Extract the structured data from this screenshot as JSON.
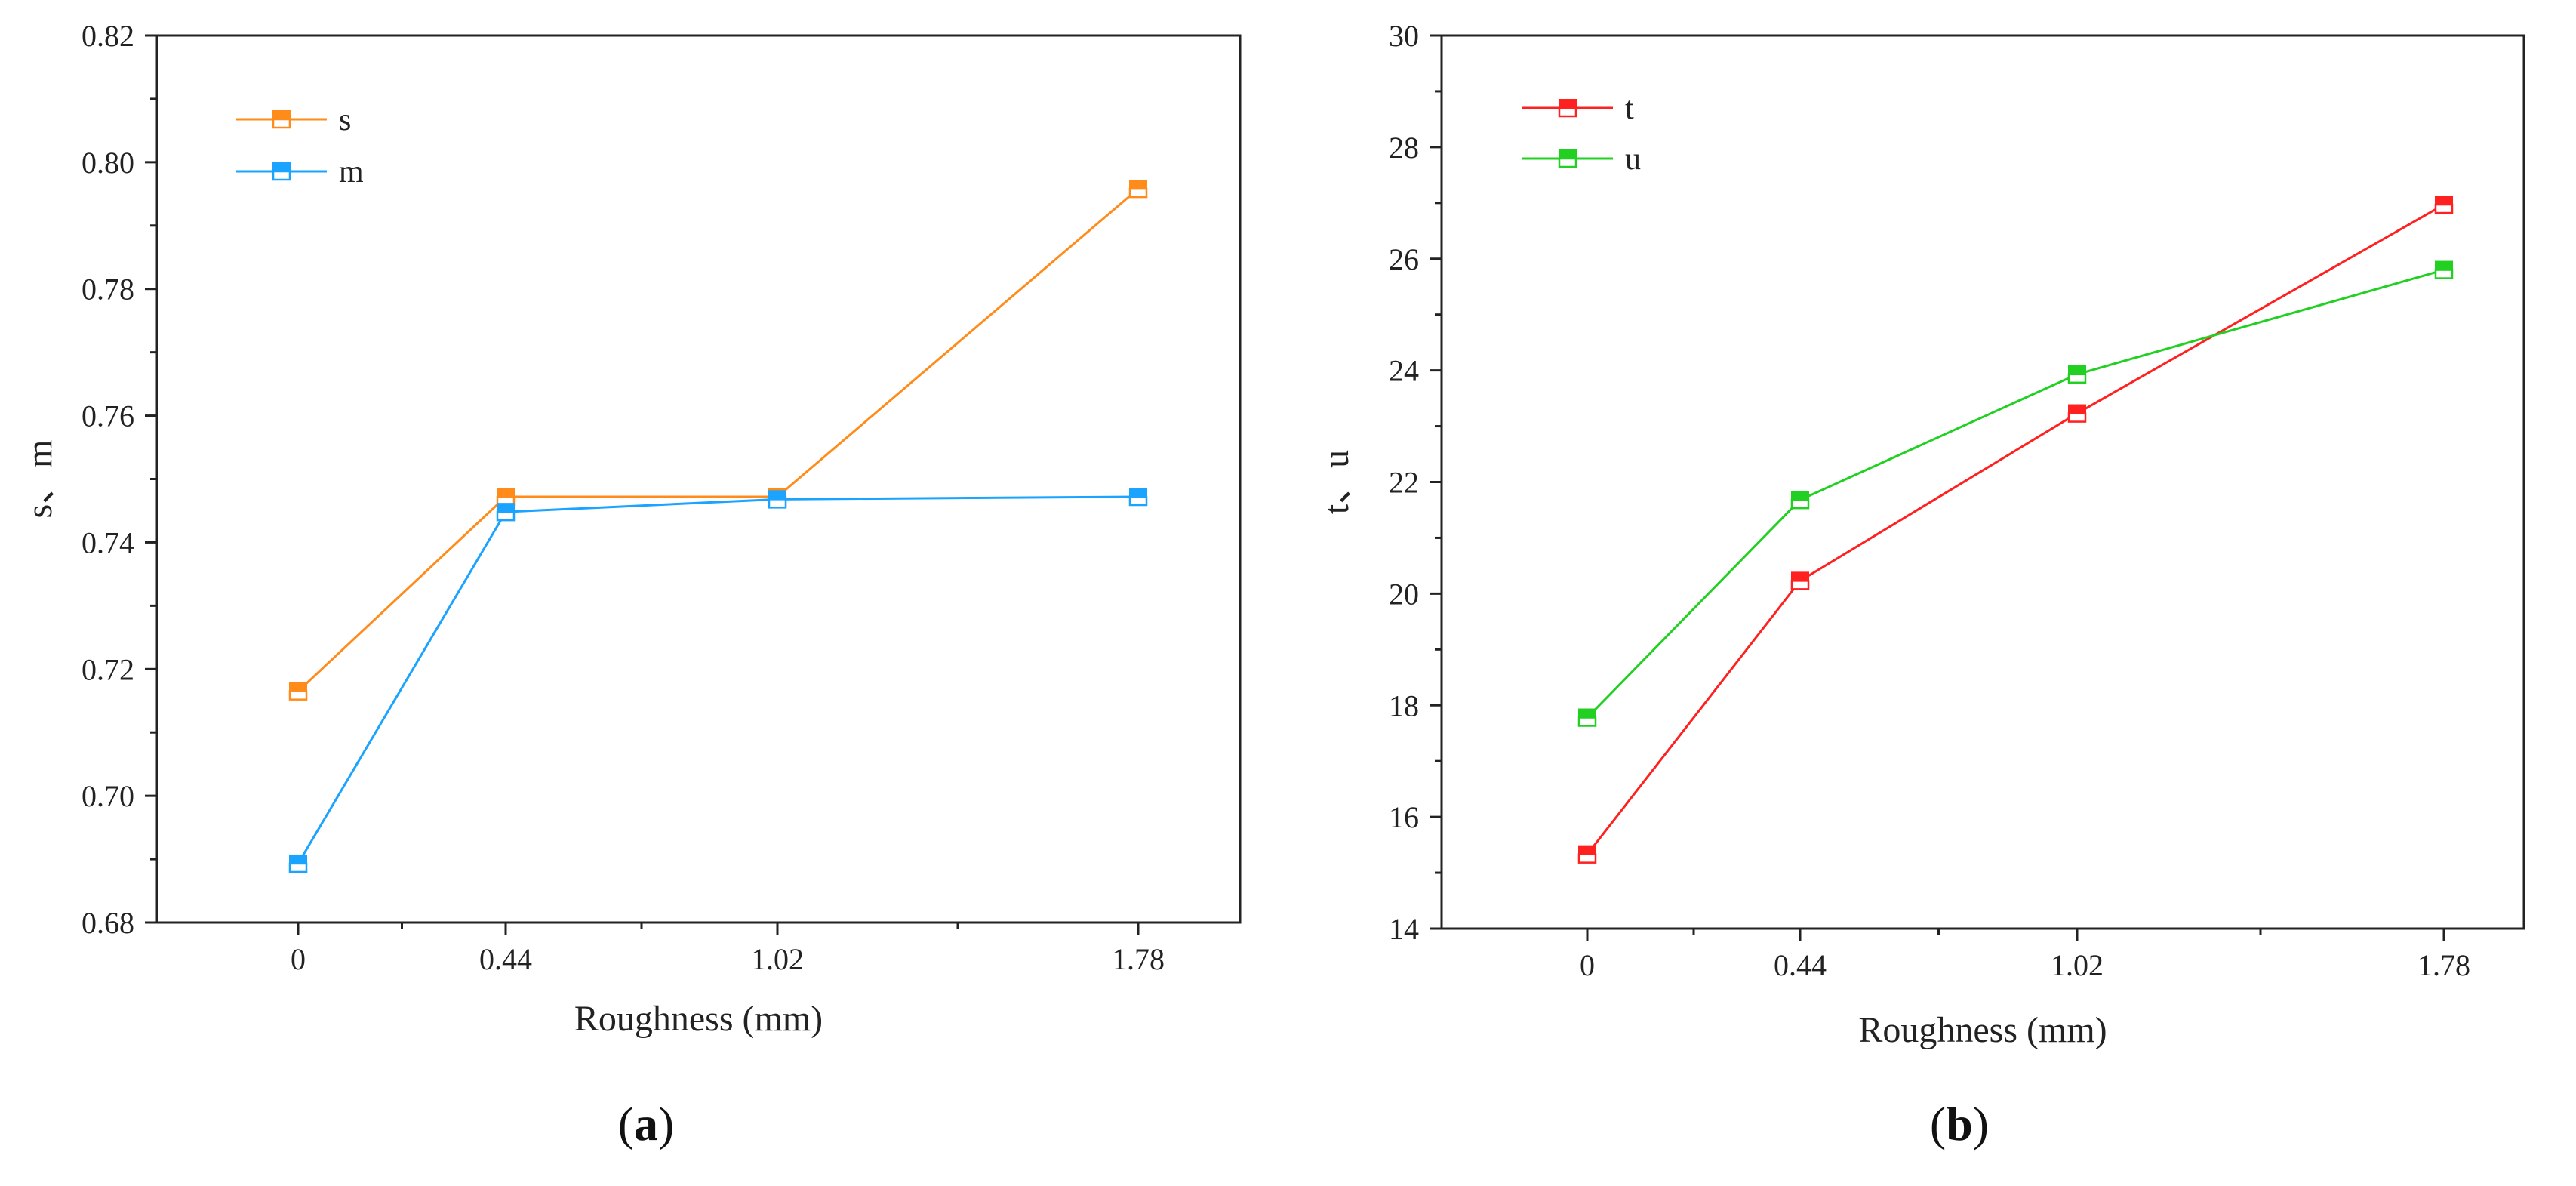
{
  "chart_data": [
    {
      "type": "line",
      "panel_label": "a",
      "categories": [
        "0",
        "0.44",
        "1.02",
        "1.78"
      ],
      "xlabel": "Roughness (mm)",
      "ylabel": "s、m",
      "ylim": [
        0.68,
        0.82
      ],
      "yticks": [
        "0.68",
        "0.70",
        "0.72",
        "0.74",
        "0.76",
        "0.78",
        "0.80",
        "0.82"
      ],
      "legend_position": "top-left",
      "series": [
        {
          "name": "s",
          "color": "#ff8c1a",
          "values": [
            0.7165,
            0.7472,
            0.7472,
            0.7958
          ]
        },
        {
          "name": "m",
          "color": "#1aa3ff",
          "values": [
            0.6893,
            0.7448,
            0.7468,
            0.7472
          ]
        }
      ]
    },
    {
      "type": "line",
      "panel_label": "b",
      "categories": [
        "0",
        "0.44",
        "1.02",
        "1.78"
      ],
      "xlabel": "Roughness (mm)",
      "ylabel": "t、u",
      "ylim": [
        14,
        30
      ],
      "yticks": [
        "14",
        "16",
        "18",
        "20",
        "22",
        "24",
        "26",
        "28",
        "30"
      ],
      "legend_position": "top-left",
      "series": [
        {
          "name": "t",
          "color": "#ff2020",
          "values": [
            15.33,
            20.23,
            23.23,
            26.97
          ]
        },
        {
          "name": "u",
          "color": "#22d022",
          "values": [
            17.78,
            21.68,
            23.93,
            25.8
          ]
        }
      ]
    }
  ]
}
